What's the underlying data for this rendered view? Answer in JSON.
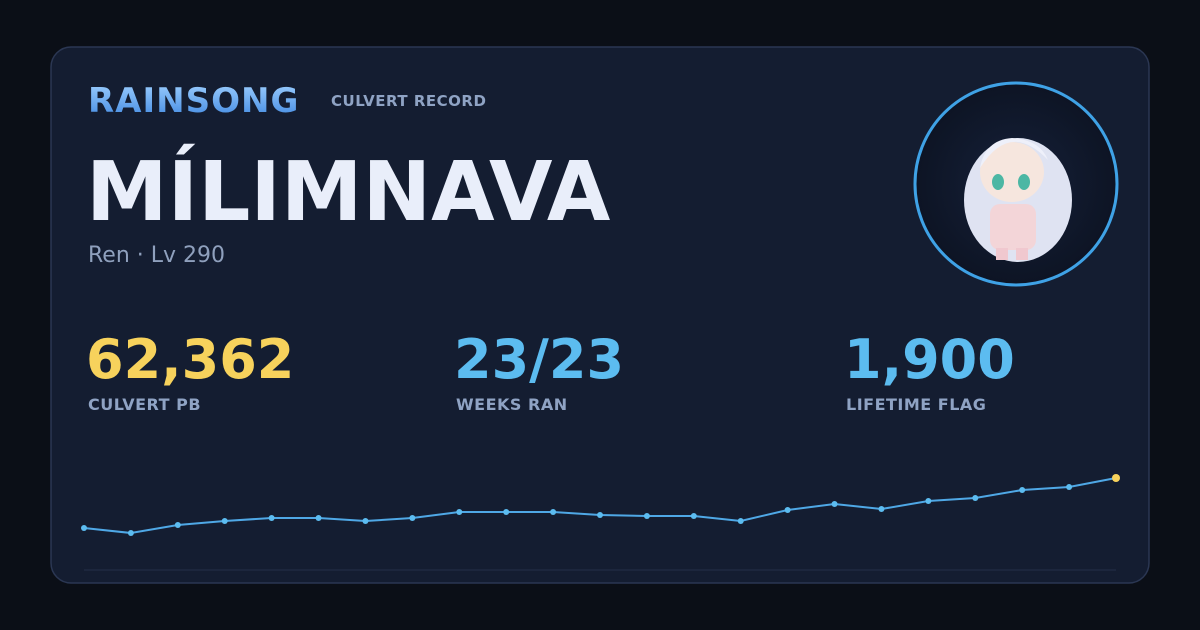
{
  "header": {
    "brand": "RAINSONG",
    "subtitle": "CULVERT RECORD"
  },
  "character": {
    "name": "MÍLIMNAVA",
    "info": "Ren · Lv 290"
  },
  "stats": [
    {
      "value": "62,362",
      "label": "CULVERT PB"
    },
    {
      "value": "23/23",
      "label": "WEEKS RAN"
    },
    {
      "value": "1,900",
      "label": "LIFETIME FLAG"
    }
  ],
  "sparkline": {
    "type": "line",
    "values": [
      42362,
      40362,
      43562,
      45162,
      46362,
      46362,
      45162,
      46362,
      48762,
      48762,
      48762,
      47562,
      47162,
      47162,
      45162,
      49562,
      51962,
      49962,
      53162,
      54362,
      57562,
      58762,
      62362
    ]
  }
}
